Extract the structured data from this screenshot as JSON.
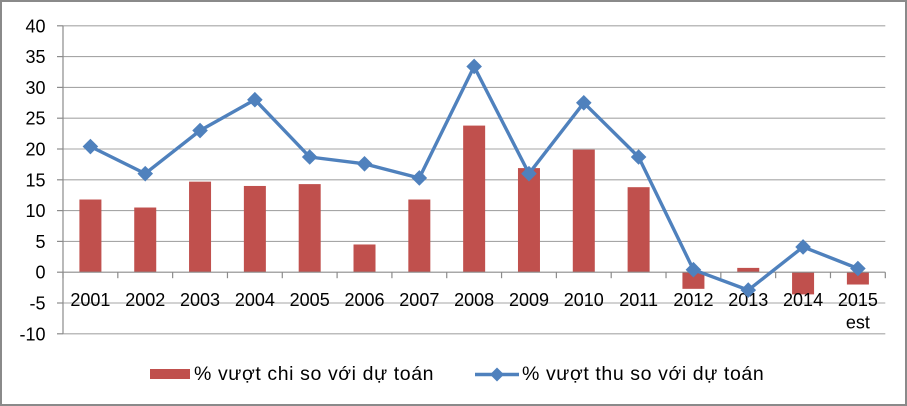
{
  "chart_data": {
    "type": "combo-bar-line",
    "categories": [
      "2001",
      "2002",
      "2003",
      "2004",
      "2005",
      "2006",
      "2007",
      "2008",
      "2009",
      "2010",
      "2011",
      "2012",
      "2013",
      "2014",
      "2015"
    ],
    "x_sublabel": {
      "index": 14,
      "text": "est"
    },
    "series": [
      {
        "name": "% vượt chi so với dự toán",
        "type": "bar",
        "values": [
          11.8,
          10.5,
          14.7,
          14.0,
          14.3,
          4.5,
          11.8,
          23.8,
          16.9,
          19.9,
          13.8,
          -2.7,
          0.7,
          -3.6,
          -2.0
        ]
      },
      {
        "name": "% vượt thu so với dự toán",
        "type": "line",
        "values": [
          20.4,
          16.0,
          23.0,
          28.0,
          18.7,
          17.6,
          15.3,
          33.4,
          16.0,
          27.5,
          18.7,
          0.4,
          -2.9,
          4.1,
          0.6
        ]
      }
    ],
    "title": "",
    "xlabel": "",
    "ylabel": "",
    "ylim": [
      -10,
      40
    ],
    "y_tick_step": 5,
    "grid": true,
    "legend_position": "bottom",
    "colors": {
      "bar": "#c0504d",
      "line": "#4f81bd",
      "marker": "#4f81bd",
      "gridline": "#a6a6a6",
      "axis": "#8b8b8b",
      "text": "#000000",
      "background": "#ffffff",
      "frame_border": "#8a8a8a"
    }
  }
}
